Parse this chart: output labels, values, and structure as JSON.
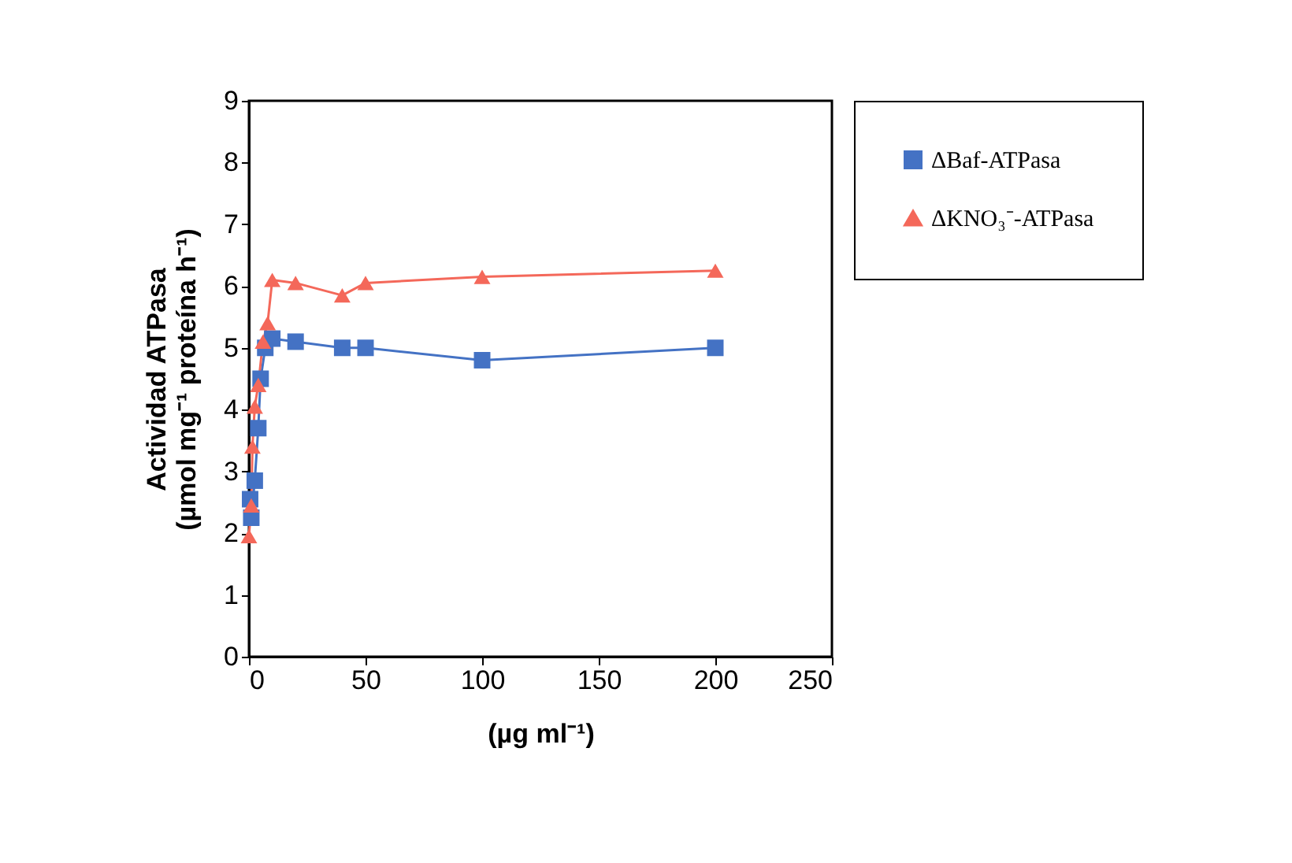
{
  "chart_data": {
    "type": "line",
    "xlabel": "(µg ml⁻¹)",
    "ylabel": [
      "Actividad ATPasa",
      "(µmol mg⁻¹ proteína h⁻¹)"
    ],
    "xlim": [
      0,
      250
    ],
    "xticks": [
      0,
      50,
      100,
      150,
      200,
      250
    ],
    "ylim": [
      0,
      9
    ],
    "yticks": [
      0,
      1,
      2,
      3,
      4,
      5,
      6,
      7,
      8,
      9
    ],
    "grid": false,
    "legend": "right",
    "series": [
      {
        "name": "ΔBaf-ATPasa",
        "color": "#4472c4",
        "marker": "square",
        "x": [
          0.5,
          1,
          2.5,
          4,
          5,
          7,
          10,
          20,
          40,
          50,
          100,
          200
        ],
        "values": [
          2.55,
          2.25,
          2.85,
          3.7,
          4.5,
          5.0,
          5.15,
          5.1,
          5.0,
          5.0,
          4.8,
          5.0
        ]
      },
      {
        "name": "ΔKNO₃⁻-ATPasa",
        "color": "#f4685a",
        "marker": "triangle",
        "x": [
          0,
          1,
          1.5,
          2.5,
          4,
          6,
          8,
          10,
          20,
          40,
          50,
          100,
          200
        ],
        "values": [
          1.95,
          2.45,
          3.4,
          4.05,
          4.4,
          5.1,
          5.4,
          6.1,
          6.05,
          5.85,
          6.05,
          6.15,
          6.25
        ]
      }
    ]
  }
}
